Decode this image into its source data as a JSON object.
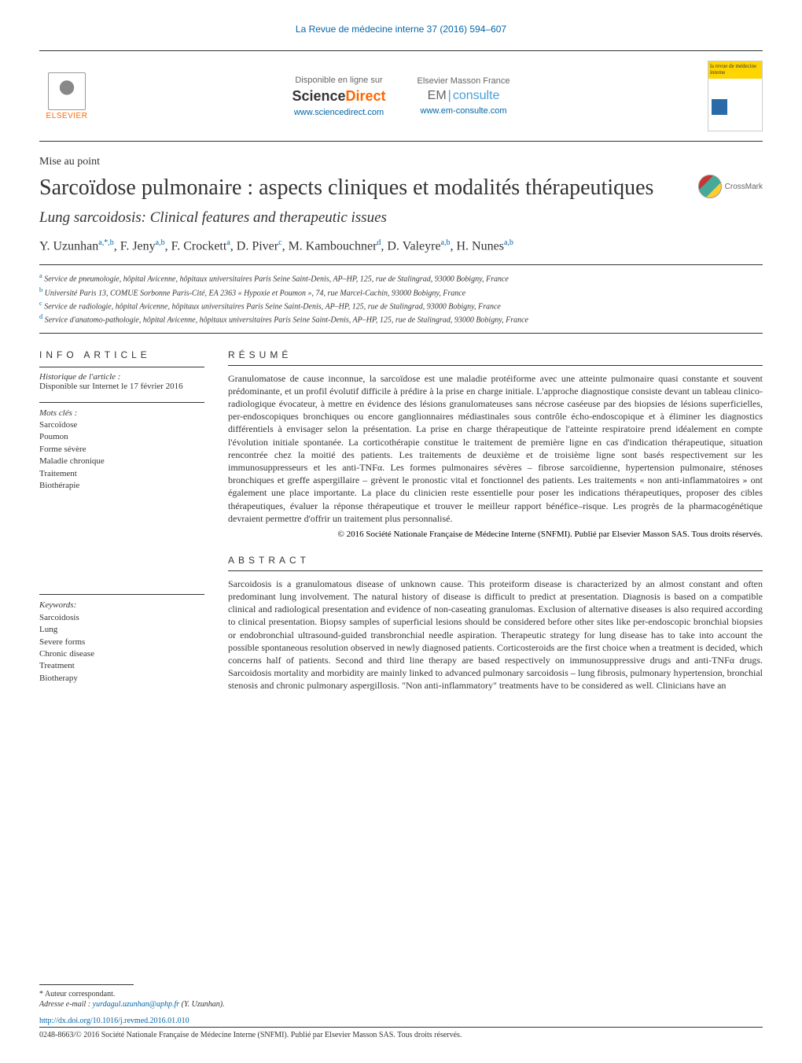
{
  "journal_ref": "La Revue de médecine interne 37 (2016) 594–607",
  "header": {
    "elsevier_label": "ELSEVIER",
    "sd_avail": "Disponible en ligne sur",
    "sd_logo_pre": "Science",
    "sd_logo_post": "Direct",
    "sd_url": "www.sciencedirect.com",
    "em_avail": "Elsevier Masson France",
    "em_logo_pre": "EM",
    "em_logo_post": "consulte",
    "em_url": "www.em-consulte.com",
    "cover_text": "la revue de médecine interne"
  },
  "article_type": "Mise au point",
  "title": "Sarcoïdose pulmonaire : aspects cliniques et modalités thérapeutiques",
  "subtitle": "Lung sarcoidosis: Clinical features and therapeutic issues",
  "crossmark": "CrossMark",
  "authors_html": "Y. Uzunhan<sup>a,*,b</sup>, F. Jeny<sup>a,b</sup>, F. Crockett<sup>a</sup>, D. Piver<sup>c</sup>, M. Kambouchner<sup>d</sup>, D. Valeyre<sup>a,b</sup>, H. Nunes<sup>a,b</sup>",
  "affiliations": [
    {
      "sup": "a",
      "text": "Service de pneumologie, hôpital Avicenne, hôpitaux universitaires Paris Seine Saint-Denis, AP–HP, 125, rue de Stalingrad, 93000 Bobigny, France"
    },
    {
      "sup": "b",
      "text": "Université Paris 13, COMUE Sorbonne Paris-Cité, EA 2363 « Hypoxie et Poumon », 74, rue Marcel-Cachin, 93000 Bobigny, France"
    },
    {
      "sup": "c",
      "text": "Service de radiologie, hôpital Avicenne, hôpitaux universitaires Paris Seine Saint-Denis, AP–HP, 125, rue de Stalingrad, 93000 Bobigny, France"
    },
    {
      "sup": "d",
      "text": "Service d'anatomo-pathologie, hôpital Avicenne, hôpitaux universitaires Paris Seine Saint-Denis, AP–HP, 125, rue de Stalingrad, 93000 Bobigny, France"
    }
  ],
  "info_head": "INFO ARTICLE",
  "hist_label": "Historique de l'article :",
  "hist_text": "Disponible sur Internet le 17 février 2016",
  "kw_fr_label": "Mots clés :",
  "kw_fr": [
    "Sarcoïdose",
    "Poumon",
    "Forme sévère",
    "Maladie chronique",
    "Traitement",
    "Biothérapie"
  ],
  "kw_en_label": "Keywords:",
  "kw_en": [
    "Sarcoidosis",
    "Lung",
    "Severe forms",
    "Chronic disease",
    "Treatment",
    "Biotherapy"
  ],
  "resume_head": "RÉSUMÉ",
  "resume_body": "Granulomatose de cause inconnue, la sarcoïdose est une maladie protéiforme avec une atteinte pulmonaire quasi constante et souvent prédominante, et un profil évolutif difficile à prédire à la prise en charge initiale. L'approche diagnostique consiste devant un tableau clinico-radiologique évocateur, à mettre en évidence des lésions granulomateuses sans nécrose caséeuse par des biopsies de lésions superficielles, per-endoscopiques bronchiques ou encore ganglionnaires médiastinales sous contrôle écho-endoscopique et à éliminer les diagnostics différentiels à envisager selon la présentation. La prise en charge thérapeutique de l'atteinte respiratoire prend idéalement en compte l'évolution initiale spontanée. La corticothérapie constitue le traitement de première ligne en cas d'indication thérapeutique, situation rencontrée chez la moitié des patients. Les traitements de deuxième et de troisième ligne sont basés respectivement sur les immunosuppresseurs et les anti-TNFα. Les formes pulmonaires sévères – fibrose sarcoïdienne, hypertension pulmonaire, sténoses bronchiques et greffe aspergillaire – grèvent le pronostic vital et fonctionnel des patients. Les traitements « non anti-inflammatoires » ont également une place importante. La place du clinicien reste essentielle pour poser les indications thérapeutiques, proposer des cibles thérapeutiques, évaluer la réponse thérapeutique et trouver le meilleur rapport bénéfice–risque. Les progrès de la pharmacogénétique devraient permettre d'offrir un traitement plus personnalisé.",
  "resume_copy": "© 2016 Société Nationale Française de Médecine Interne (SNFMI). Publié par Elsevier Masson SAS. Tous droits réservés.",
  "abstract_head": "ABSTRACT",
  "abstract_body": "Sarcoidosis is a granulomatous disease of unknown cause. This proteiform disease is characterized by an almost constant and often predominant lung involvement. The natural history of disease is difficult to predict at presentation. Diagnosis is based on a compatible clinical and radiological presentation and evidence of non-caseating granulomas. Exclusion of alternative diseases is also required according to clinical presentation. Biopsy samples of superficial lesions should be considered before other sites like per-endoscopic bronchial biopsies or endobronchial ultrasound-guided transbronchial needle aspiration. Therapeutic strategy for lung disease has to take into account the possible spontaneous resolution observed in newly diagnosed patients. Corticosteroids are the first choice when a treatment is decided, which concerns half of patients. Second and third line therapy are based respectively on immunosuppressive drugs and anti-TNFα drugs. Sarcoidosis mortality and morbidity are mainly linked to advanced pulmonary sarcoidosis – lung fibrosis, pulmonary hypertension, bronchial stenosis and chronic pulmonary aspergillosis. \"Non anti-inflammatory\" treatments have to be considered as well. Clinicians have an",
  "footer": {
    "corresp": "* Auteur correspondant.",
    "email_label": "Adresse e-mail :",
    "email": "yurdagul.uzunhan@aphp.fr",
    "email_author": "(Y. Uzunhan).",
    "doi": "http://dx.doi.org/10.1016/j.revmed.2016.01.010",
    "issn_copy": "0248-8663/© 2016 Société Nationale Française de Médecine Interne (SNFMI). Publié par Elsevier Masson SAS. Tous droits réservés."
  },
  "colors": {
    "link": "#0066aa",
    "elsevier_orange": "#ff6600",
    "text": "#333333",
    "bg": "#ffffff"
  }
}
